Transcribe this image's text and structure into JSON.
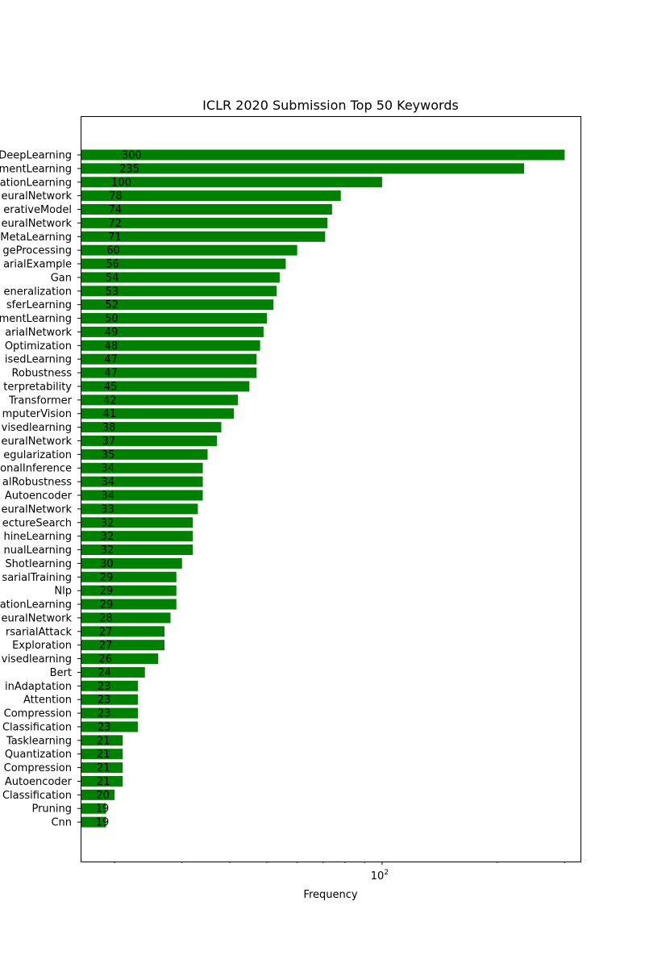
{
  "chart_data": {
    "type": "bar",
    "orientation": "horizontal",
    "title": "ICLR 2020 Submission Top 50 Keywords",
    "xlabel": "Frequency",
    "ylabel": "",
    "xscale": "log",
    "xlim": [
      16.3,
      330
    ],
    "major_tick": {
      "value": 100,
      "label_base": "10",
      "label_exp": "2"
    },
    "minor_ticks": [
      20,
      30,
      40,
      50,
      60,
      70,
      80,
      90,
      200,
      300
    ],
    "bar_color": "#008000",
    "grid": false,
    "categories": [
      "DeepLearning",
      "mentLearning",
      "ationLearning",
      "euralNetwork",
      "erativeModel",
      "euralNetwork",
      "MetaLearning",
      "geProcessing",
      "arialExample",
      "Gan",
      "eneralization",
      "sferLearning",
      "mentLearning",
      "arialNetwork",
      "Optimization",
      "isedLearning",
      "Robustness",
      "terpretability",
      "Transformer",
      "mputerVision",
      "visedlearning",
      "euralNetwork",
      "egularization",
      "onalInference",
      "alRobustness",
      "Autoencoder",
      "euralNetwork",
      "ectureSearch",
      "hineLearning",
      "nualLearning",
      "Shotlearning",
      "sarialTraining",
      "Nlp",
      "ationLearning",
      "euralNetwork",
      "rsarialAttack",
      "Exploration",
      "visedlearning",
      "Bert",
      "inAdaptation",
      "Attention",
      "Compression",
      "Classification",
      "Tasklearning",
      "Quantization",
      "Compression",
      "Autoencoder",
      "Classification",
      "Pruning",
      "Cnn"
    ],
    "values": [
      300,
      235,
      100,
      78,
      74,
      72,
      71,
      60,
      56,
      54,
      53,
      52,
      50,
      49,
      48,
      47,
      47,
      45,
      42,
      41,
      38,
      37,
      35,
      34,
      34,
      34,
      33,
      32,
      32,
      32,
      30,
      29,
      29,
      29,
      28,
      27,
      27,
      26,
      24,
      23,
      23,
      23,
      23,
      21,
      21,
      21,
      21,
      20,
      19,
      19
    ]
  }
}
